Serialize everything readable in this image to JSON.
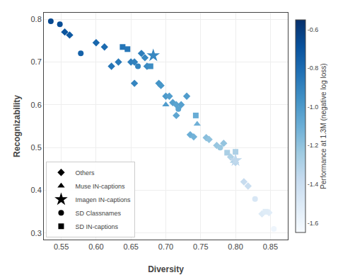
{
  "chart_data": {
    "type": "scatter",
    "xlabel": "Diversity",
    "ylabel": "Recognizability",
    "xlim": [
      0.525,
      0.875
    ],
    "ylim": [
      0.285,
      0.815
    ],
    "xticks": [
      0.55,
      {
        "value": 0.6,
        "label": "0.60"
      },
      0.65,
      {
        "value": 0.7,
        "label": "0.70"
      },
      0.75,
      {
        "value": 0.8,
        "label": "0.80"
      },
      0.85
    ],
    "yticks": [
      0.3,
      0.4,
      0.5,
      0.6,
      0.7,
      0.8
    ],
    "grid": true,
    "legend": "lower left",
    "colorbar": {
      "label": "Performance at 1.3M (negative log loss)",
      "range": [
        -1.65,
        -0.55
      ],
      "ticks": [
        -0.6,
        -0.8,
        {
          "value": -1.0,
          "label": "-1.0"
        },
        -1.2,
        -1.4,
        -1.6
      ]
    },
    "series": [
      {
        "name": "Others",
        "marker": "diamond",
        "x": [
          0.555,
          0.562,
          0.6,
          0.612,
          0.622,
          0.632,
          0.65,
          0.655,
          0.655,
          0.665,
          0.67,
          0.673,
          0.69,
          0.693,
          0.7,
          0.705,
          0.71,
          0.715,
          0.715,
          0.722,
          0.73,
          0.735,
          0.74,
          0.758,
          0.762,
          0.773,
          0.783,
          0.793,
          0.8,
          0.812,
          0.818,
          0.838,
          0.848
        ],
        "y": [
          0.77,
          0.763,
          0.745,
          0.735,
          0.69,
          0.7,
          0.7,
          0.7,
          0.65,
          0.72,
          0.71,
          0.69,
          0.65,
          0.645,
          0.62,
          0.62,
          0.605,
          0.6,
          0.575,
          0.6,
          0.62,
          0.53,
          0.525,
          0.523,
          0.519,
          0.505,
          0.51,
          0.478,
          0.465,
          0.42,
          0.41,
          0.345,
          0.348
        ],
        "c": [
          -0.7,
          -0.72,
          -0.78,
          -0.8,
          -0.84,
          -0.86,
          -0.88,
          -0.89,
          -0.91,
          -0.88,
          -0.92,
          -0.93,
          -0.97,
          -0.98,
          -1.0,
          -1.02,
          -1.03,
          -1.05,
          -1.06,
          -1.03,
          -1.01,
          -1.1,
          -1.12,
          -1.18,
          -1.2,
          -1.22,
          -1.21,
          -1.3,
          -1.33,
          -1.38,
          -1.4,
          -1.5,
          -1.53
        ]
      },
      {
        "name": "Muse IN-captions",
        "marker": "triangle-up",
        "x": [
          0.7,
          0.745,
          0.797
        ],
        "y": [
          0.6,
          0.555,
          0.468
        ],
        "c": [
          -1.01,
          -1.11,
          -1.31
        ]
      },
      {
        "name": "Imagen IN-captions",
        "marker": "star",
        "x": [
          0.682,
          0.8
        ],
        "y": [
          0.715,
          0.47
        ],
        "c": [
          -0.92,
          -1.35
        ]
      },
      {
        "name": "SD Classnames",
        "marker": "circle",
        "x": [
          0.535,
          0.548,
          0.578,
          0.66,
          0.718,
          0.778,
          0.828,
          0.855
        ],
        "y": [
          0.795,
          0.788,
          0.72,
          0.69,
          0.59,
          0.5,
          0.38,
          0.31
        ],
        "c": [
          -0.65,
          -0.67,
          -0.76,
          -0.9,
          -1.05,
          -1.23,
          -1.48,
          -1.6
        ]
      },
      {
        "name": "SD IN-captions",
        "marker": "square",
        "x": [
          0.638,
          0.645,
          0.678,
          0.743,
          0.788,
          0.8,
          0.843
        ],
        "y": [
          0.735,
          0.73,
          0.69,
          0.575,
          0.488,
          0.49,
          0.35
        ],
        "c": [
          -0.84,
          -0.85,
          -0.94,
          -1.09,
          -1.28,
          -1.29,
          -1.52
        ]
      }
    ]
  }
}
